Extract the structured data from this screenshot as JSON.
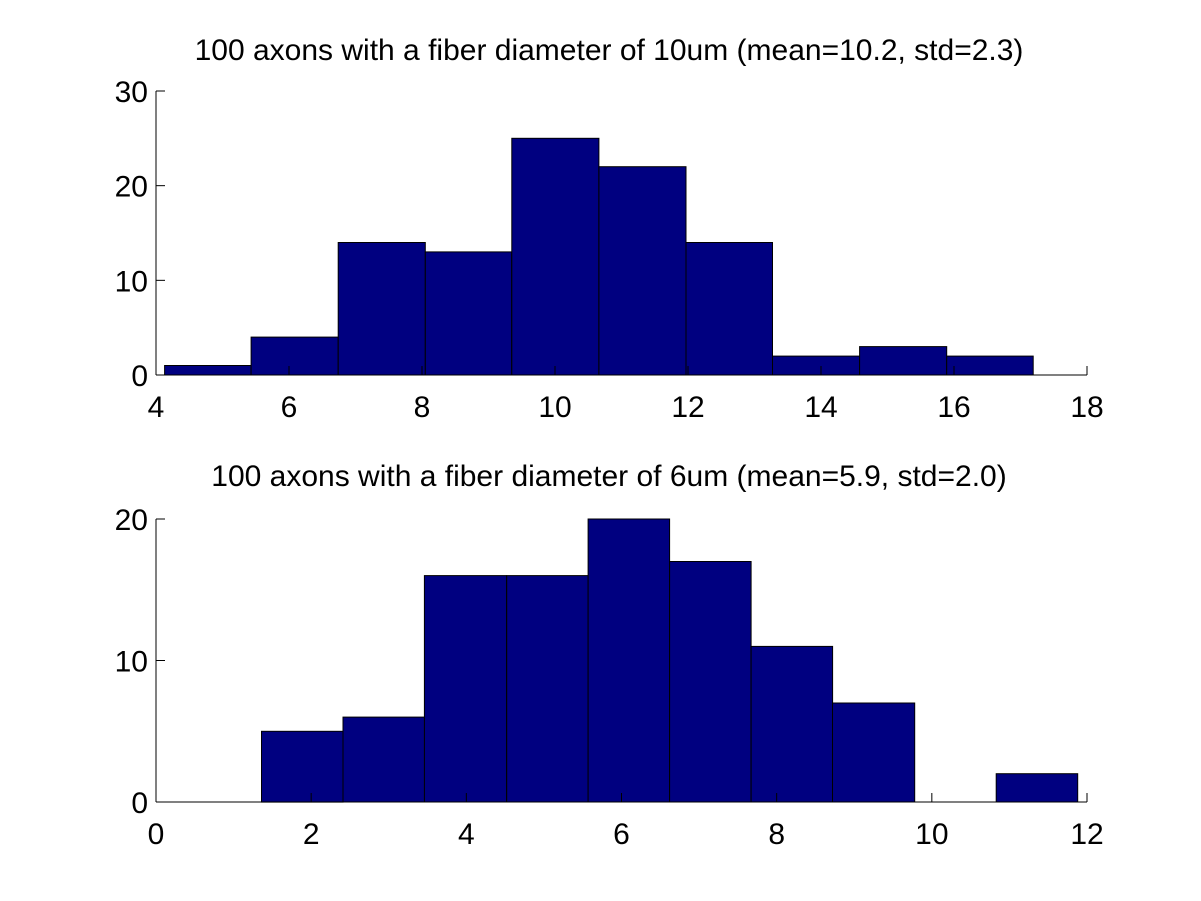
{
  "chart_data": [
    {
      "type": "bar",
      "subtype": "histogram",
      "title": "100 axons with a fiber diameter of 10um (mean=10.2, std=2.3)",
      "xlabel": "",
      "ylabel": "",
      "xlim": [
        4,
        18
      ],
      "ylim": [
        0,
        30
      ],
      "xticks": [
        4,
        6,
        8,
        10,
        12,
        14,
        16,
        18
      ],
      "yticks": [
        0,
        10,
        20,
        30
      ],
      "bin_edges": [
        4.13,
        5.43,
        6.74,
        8.05,
        9.35,
        10.66,
        11.97,
        13.27,
        14.58,
        15.89,
        17.19
      ],
      "values": [
        1,
        4,
        14,
        13,
        25,
        22,
        14,
        2,
        3,
        2
      ],
      "grid": false,
      "box": false,
      "color": "#000080"
    },
    {
      "type": "bar",
      "subtype": "histogram",
      "title": "100 axons with a fiber diameter of 6um (mean=5.9, std=2.0)",
      "xlabel": "",
      "ylabel": "",
      "xlim": [
        0,
        12
      ],
      "ylim": [
        0,
        20
      ],
      "xticks": [
        0,
        2,
        4,
        6,
        8,
        10,
        12
      ],
      "yticks": [
        0,
        10,
        20
      ],
      "bin_edges": [
        1.36,
        2.41,
        3.46,
        4.52,
        5.57,
        6.62,
        7.67,
        8.72,
        9.78,
        10.83,
        11.88
      ],
      "values": [
        5,
        6,
        16,
        16,
        20,
        17,
        11,
        7,
        0,
        2
      ],
      "grid": false,
      "box": false,
      "color": "#000080"
    }
  ]
}
